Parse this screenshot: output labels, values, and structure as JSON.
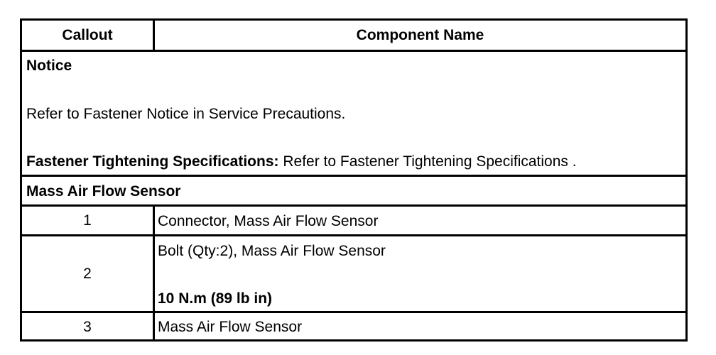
{
  "header": {
    "callout": "Callout",
    "component_name": "Component Name"
  },
  "notice": {
    "title": "Notice",
    "text": "Refer to Fastener Notice in Service Precautions.",
    "spec_label": "Fastener Tightening Specifications:",
    "spec_text": " Refer to Fastener Tightening Specifications ."
  },
  "section": "Mass Air Flow Sensor",
  "rows": [
    {
      "callout": "1",
      "name": "Connector, Mass Air Flow Sensor"
    },
    {
      "callout": "2",
      "name": "Bolt (Qty:2), Mass Air Flow Sensor",
      "spec": "10 N.m (89 lb in)"
    },
    {
      "callout": "3",
      "name": "Mass Air Flow Sensor"
    }
  ]
}
